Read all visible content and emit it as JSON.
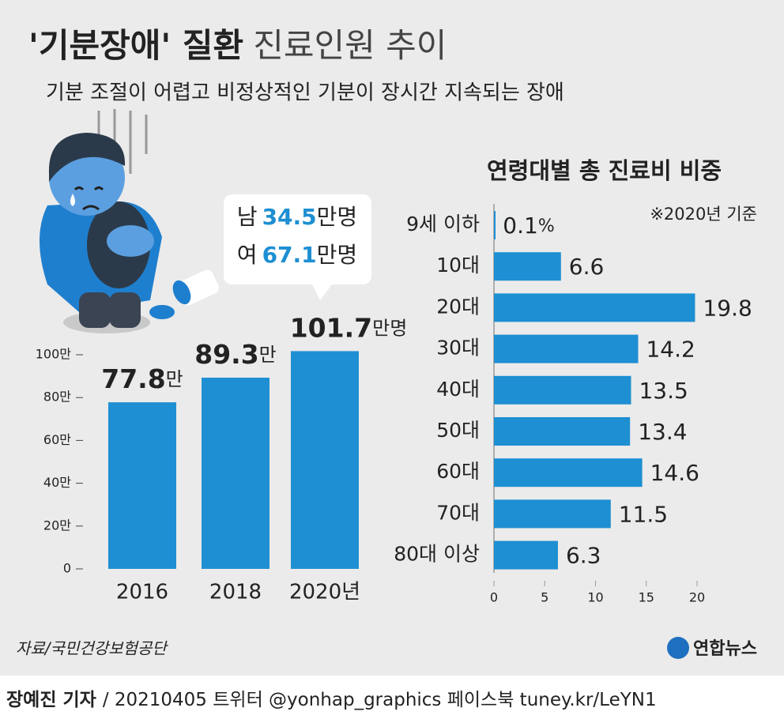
{
  "title": [
    "'기분장애' 질환",
    "진료인원 추이"
  ],
  "subtitle": "기분 조절이 어렵고 비정상적인 기분이 장시간 지속되는 장애",
  "chart_data": [
    {
      "type": "bar",
      "categories": [
        "2016",
        "2018",
        "2020년"
      ],
      "values": [
        77.8,
        89.3,
        101.7
      ],
      "value_labels": [
        "77.8만",
        "89.3만",
        "101.7만명"
      ],
      "color": "#1e8fd2",
      "ylim": [
        0,
        100
      ],
      "yticks": [
        0,
        {
          "value": 20,
          "label": "20만"
        },
        {
          "value": 40,
          "label": "40만"
        },
        {
          "value": 60,
          "label": "60만"
        },
        {
          "value": 80,
          "label": "80만"
        },
        {
          "value": 100,
          "label": "100만"
        }
      ],
      "annotations": [
        {
          "prefix": "남",
          "value": 34.5,
          "suffix": "만명"
        },
        {
          "prefix": "여",
          "value": 67.1,
          "suffix": "만명"
        }
      ]
    },
    {
      "type": "hbar",
      "title": "연령대별 총 진료비 비중",
      "note": "※2020년 기준",
      "categories": [
        "9세 이하",
        "10대",
        "20대",
        "30대",
        "40대",
        "50대",
        "60대",
        "70대",
        "80대 이상"
      ],
      "values": [
        0.1,
        6.6,
        19.8,
        14.2,
        13.5,
        13.4,
        14.6,
        11.5,
        6.3
      ],
      "value_labels": [
        "0.1%",
        "6.6",
        "19.8",
        "14.2",
        "13.5",
        "13.4",
        "14.6",
        "11.5",
        "6.3"
      ],
      "color": "#1e8fd2",
      "xlim": [
        0,
        20
      ],
      "xticks": [
        0,
        5,
        10,
        15,
        20
      ]
    }
  ],
  "source": "자료/국민건강보험공단",
  "logo": "연합뉴스",
  "footer": [
    "장예진 기자",
    "/ 20210405 트위터 @yonhap_graphics  페이스북 tuney.kr/LeYN1"
  ]
}
